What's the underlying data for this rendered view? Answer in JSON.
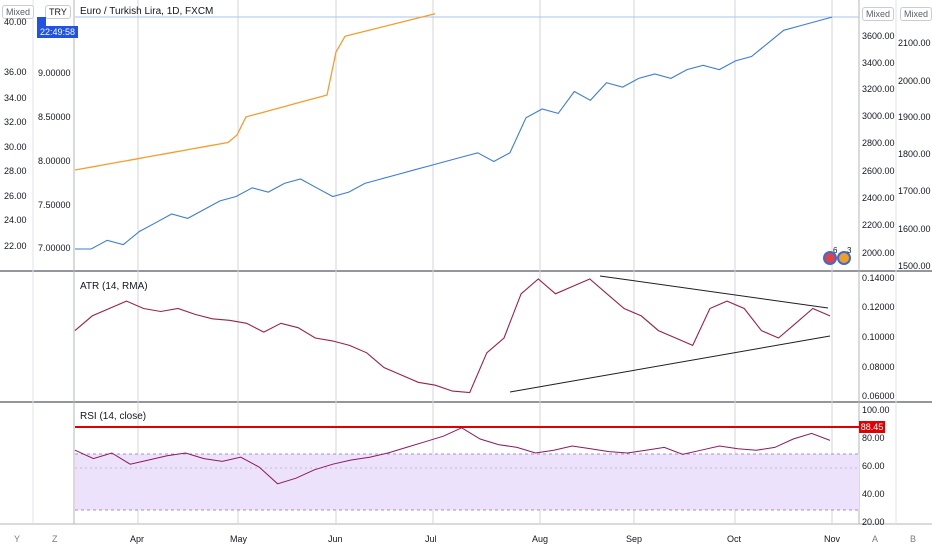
{
  "header": {
    "title": "Euro / Turkish Lira, 1D, FXCM",
    "mixed_left": "Mixed",
    "currency_badge": "TRY",
    "countdown": "22:49:58",
    "mixed_right_a": "Mixed",
    "mixed_right_b": "Mixed",
    "events_badge": "6",
    "events_badge2": "3"
  },
  "axes": {
    "left_outer": [
      "40.00",
      "36.00",
      "34.00",
      "32.00",
      "30.00",
      "28.00",
      "26.00",
      "24.00",
      "22.00"
    ],
    "left_inner": [
      "9.00000",
      "8.50000",
      "8.00000",
      "7.50000",
      "7.00000"
    ],
    "right_a": [
      "3600.00",
      "3400.00",
      "3200.00",
      "3000.00",
      "2800.00",
      "2600.00",
      "2400.00",
      "2200.00",
      "2000.00"
    ],
    "right_b": [
      "2100.00",
      "2000.00",
      "1900.00",
      "1800.00",
      "1700.00",
      "1600.00",
      "1500.00"
    ],
    "atr": [
      "0.14000",
      "0.12000",
      "0.10000",
      "0.08000",
      "0.06000"
    ],
    "rsi": [
      "100.00",
      "80.00",
      "60.00",
      "40.00",
      "20.00"
    ],
    "rsi_marker": "88.45",
    "months": [
      "Apr",
      "May",
      "Jun",
      "Jul",
      "Aug",
      "Sep",
      "Oct",
      "Nov"
    ]
  },
  "panes": {
    "atr_title": "ATR (14, RMA)",
    "rsi_title": "RSI (14, close)"
  },
  "bottom_bar": {
    "y": "Y",
    "z": "Z",
    "a": "A",
    "b": "B"
  },
  "colors": {
    "price": "#3d7dd6",
    "orange": "#f59d2f",
    "atr": "#99224b",
    "rsi": "#8b1a5e",
    "rsi_band": "#ede2fb",
    "red": "#e00000",
    "trend": "#1e1e1e"
  },
  "chart_data": [
    {
      "type": "line",
      "name": "price",
      "series": [
        {
          "name": "Euro / Turkish Lira",
          "values": [
            7.0,
            7.0,
            7.1,
            7.05,
            7.2,
            7.3,
            7.4,
            7.35,
            7.45,
            7.55,
            7.6,
            7.7,
            7.65,
            7.75,
            7.8,
            7.7,
            7.6,
            7.65,
            7.75,
            7.8,
            7.85,
            7.9,
            7.95,
            8.0,
            8.05,
            8.1,
            8.0,
            8.1,
            8.5,
            8.6,
            8.55,
            8.8,
            8.7,
            8.9,
            8.85,
            8.95,
            9.0,
            8.95,
            9.05,
            9.1,
            9.05,
            9.15,
            9.2,
            9.35,
            9.5,
            9.55,
            9.6,
            9.65
          ]
        }
      ]
    },
    {
      "type": "line",
      "name": "ATR",
      "series": [
        {
          "name": "ATR (14, RMA)",
          "values": [
            0.105,
            0.115,
            0.12,
            0.125,
            0.12,
            0.118,
            0.12,
            0.116,
            0.113,
            0.112,
            0.11,
            0.104,
            0.11,
            0.107,
            0.1,
            0.098,
            0.095,
            0.09,
            0.08,
            0.075,
            0.07,
            0.068,
            0.064,
            0.063,
            0.09,
            0.1,
            0.13,
            0.14,
            0.13,
            0.135,
            0.14,
            0.13,
            0.12,
            0.115,
            0.105,
            0.1,
            0.095,
            0.12,
            0.125,
            0.12,
            0.105,
            0.1,
            0.11,
            0.12,
            0.115
          ]
        }
      ]
    },
    {
      "type": "line",
      "name": "RSI",
      "series": [
        {
          "name": "RSI (14, close)",
          "values": [
            72,
            66,
            70,
            62,
            65,
            68,
            70,
            66,
            64,
            67,
            60,
            48,
            52,
            58,
            62,
            65,
            67,
            70,
            74,
            78,
            82,
            88,
            80,
            76,
            74,
            70,
            72,
            75,
            73,
            71,
            70,
            72,
            74,
            69,
            72,
            75,
            73,
            72,
            74,
            80,
            84,
            79
          ]
        }
      ]
    }
  ]
}
